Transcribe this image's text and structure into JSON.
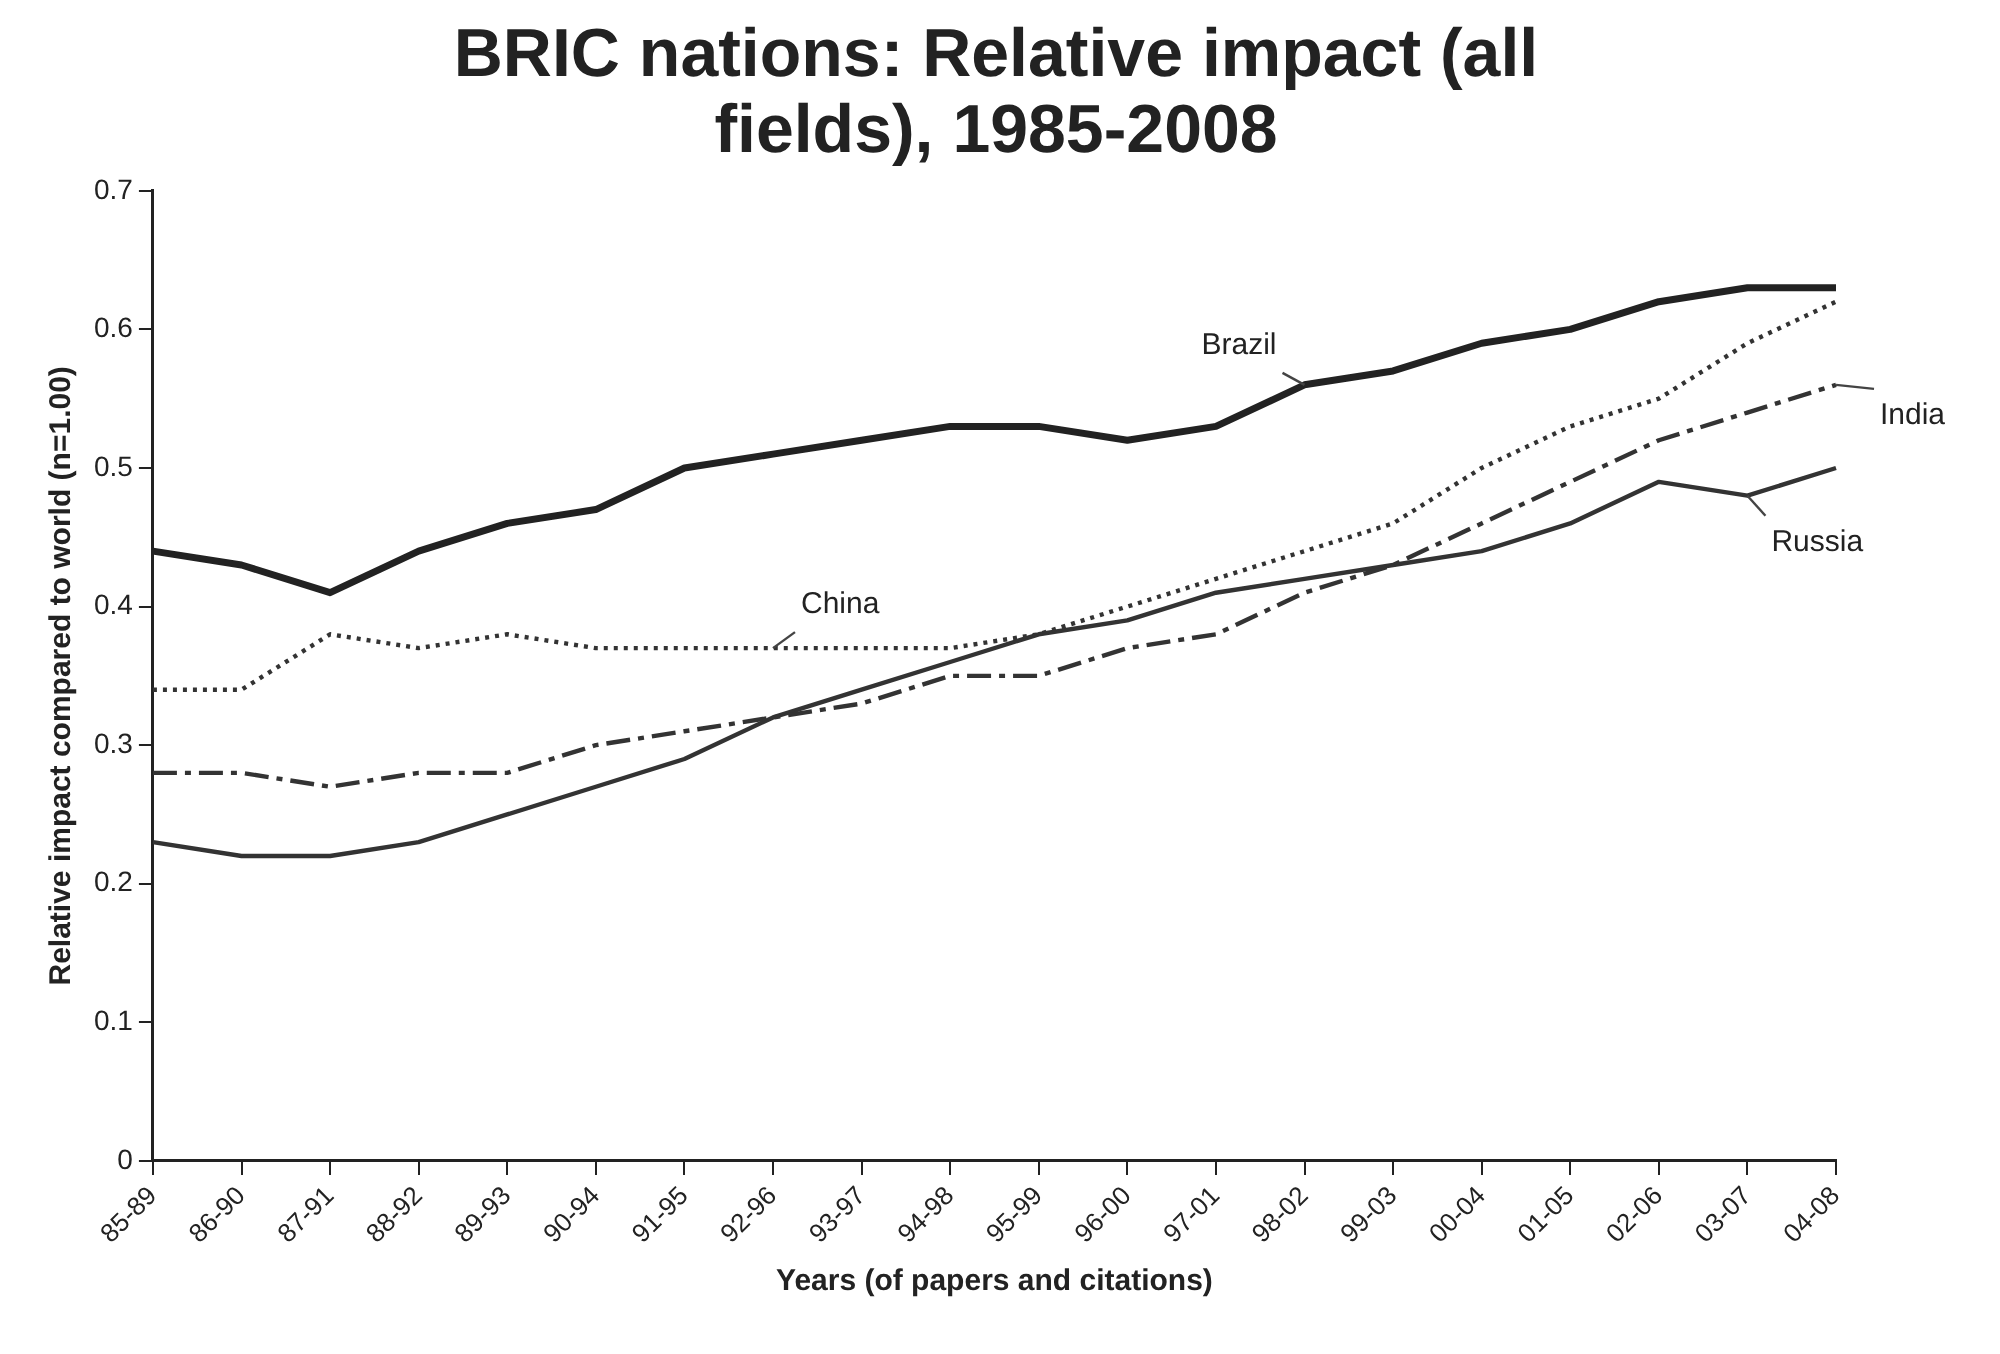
{
  "chart_data": {
    "type": "line",
    "title": "BRIC nations: Relative impact (all fields), 1985-2008",
    "xlabel": "Years (of papers and citations)",
    "ylabel": "Relative impact compared to world (n=1.00)",
    "categories": [
      "85-89",
      "86-90",
      "87-91",
      "88-92",
      "89-93",
      "90-94",
      "91-95",
      "92-96",
      "93-97",
      "94-98",
      "95-99",
      "96-00",
      "97-01",
      "98-02",
      "99-03",
      "00-04",
      "01-05",
      "02-06",
      "03-07",
      "04-08"
    ],
    "series": [
      {
        "name": "Brazil",
        "color": "#222222",
        "line_style": "solid",
        "values": [
          0.44,
          0.43,
          0.41,
          0.44,
          0.46,
          0.47,
          0.5,
          0.51,
          0.52,
          0.53,
          0.53,
          0.52,
          0.53,
          0.56,
          0.57,
          0.59,
          0.6,
          0.62,
          0.63,
          0.63
        ]
      },
      {
        "name": "China",
        "color": "#333333",
        "line_style": "dotted",
        "values": [
          0.34,
          0.34,
          0.38,
          0.37,
          0.38,
          0.37,
          0.37,
          0.37,
          0.37,
          0.37,
          0.38,
          0.4,
          0.42,
          0.44,
          0.46,
          0.5,
          0.53,
          0.55,
          0.59,
          0.62
        ]
      },
      {
        "name": "India",
        "color": "#333333",
        "line_style": "dashed",
        "values": [
          0.28,
          0.28,
          0.27,
          0.28,
          0.28,
          0.3,
          0.31,
          0.32,
          0.33,
          0.35,
          0.35,
          0.37,
          0.38,
          0.41,
          0.43,
          0.46,
          0.49,
          0.52,
          0.54,
          0.56
        ]
      },
      {
        "name": "Russia",
        "color": "#333333",
        "line_style": "solid",
        "values": [
          0.23,
          0.22,
          0.22,
          0.23,
          0.25,
          0.27,
          0.29,
          0.32,
          0.34,
          0.36,
          0.38,
          0.39,
          0.41,
          0.42,
          0.43,
          0.44,
          0.46,
          0.49,
          0.48,
          0.5
        ]
      }
    ],
    "ylim": [
      0,
      0.7
    ],
    "yticks": [
      0,
      0.1,
      0.2,
      0.3,
      0.4,
      0.5,
      0.6,
      0.7
    ],
    "grid": false,
    "legend": false,
    "marker": "none"
  }
}
